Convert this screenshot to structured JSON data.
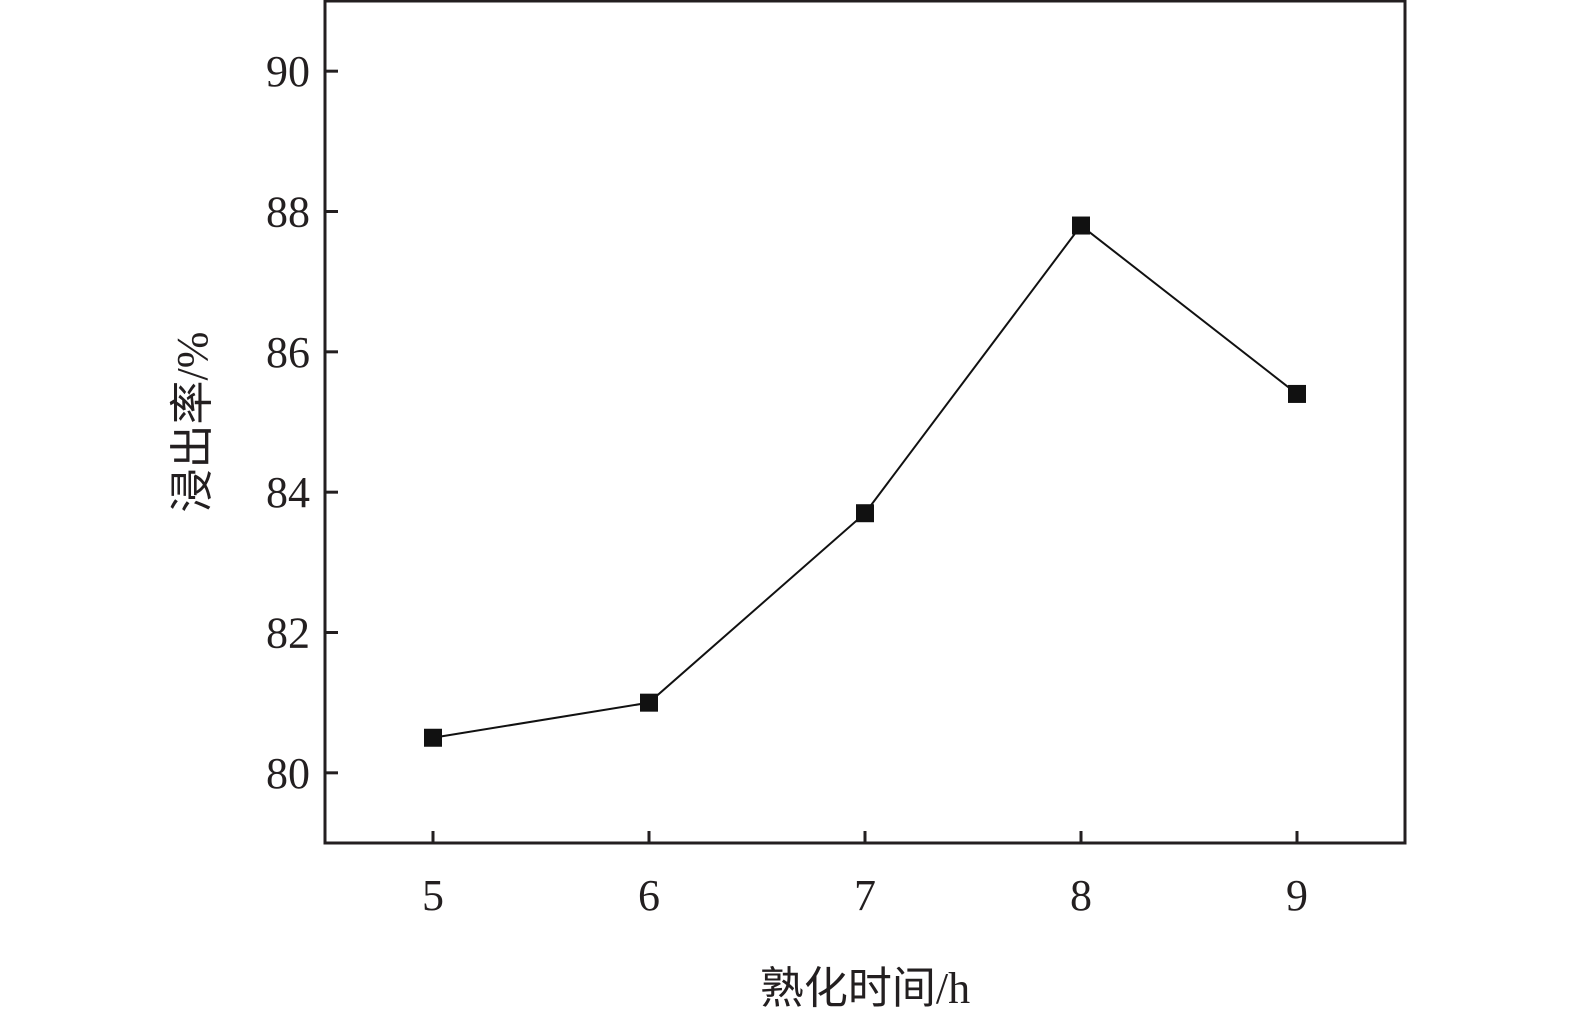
{
  "chart_data": {
    "type": "line",
    "title": "",
    "xlabel": "熟化时间/h",
    "ylabel": "浸出率/%",
    "x": [
      5,
      6,
      7,
      8,
      9
    ],
    "series": [
      {
        "values": [
          80.5,
          81.0,
          83.7,
          87.8,
          85.4
        ],
        "marker": "square",
        "color": "#111111"
      }
    ],
    "xlim": [
      4.5,
      9.5
    ],
    "ylim": [
      79,
      91
    ],
    "xticks": [
      "5",
      "6",
      "7",
      "8",
      "9"
    ],
    "yticks": [
      "80",
      "82",
      "84",
      "86",
      "88",
      "90"
    ],
    "grid": false,
    "legend": "none"
  }
}
